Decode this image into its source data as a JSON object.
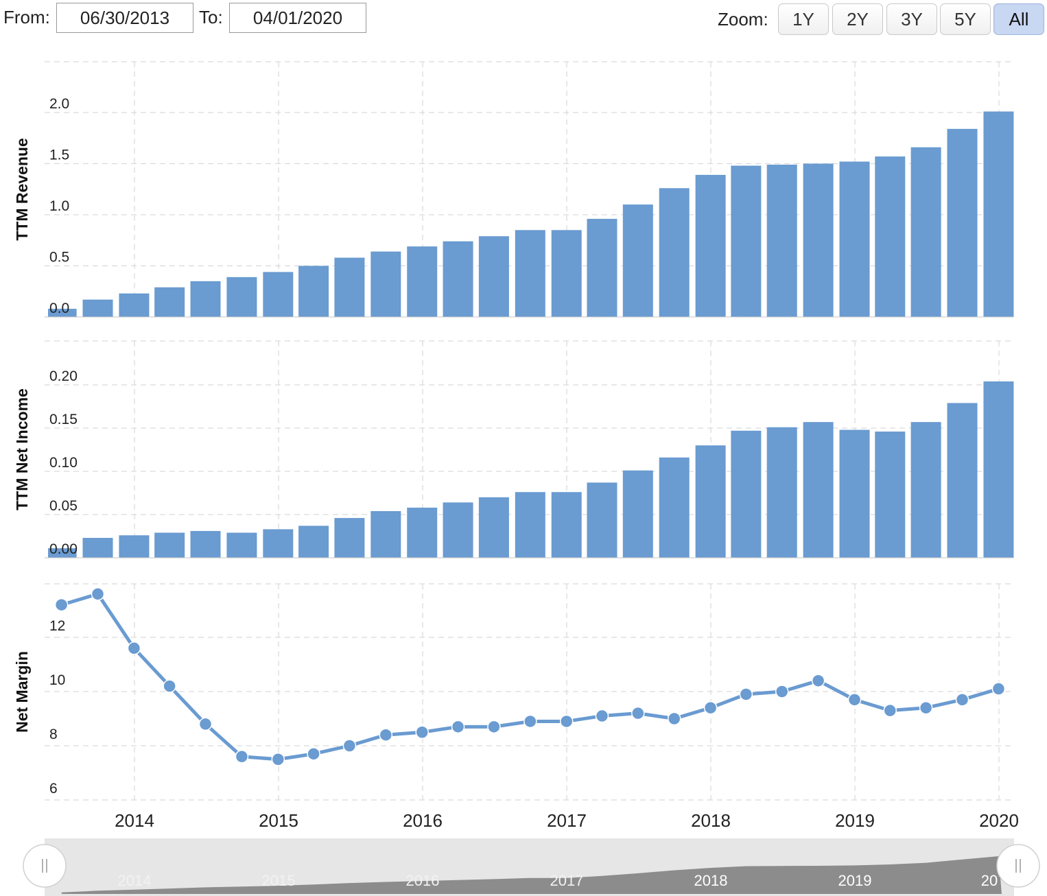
{
  "toolbar": {
    "from_label": "From:",
    "from_value": "06/30/2013",
    "to_label": "To:",
    "to_value": "04/01/2020",
    "zoom_label": "Zoom:",
    "zoom_options": [
      "1Y",
      "2Y",
      "3Y",
      "5Y",
      "All"
    ],
    "zoom_active": "All"
  },
  "colors": {
    "bar": "#6a9bd1",
    "line": "#6a9bd1",
    "grid": "#d9d9d9",
    "navigator_fill": "#8c8c8c",
    "navigator_bg": "#e6e6e6"
  },
  "chart_data": [
    {
      "type": "bar",
      "ylabel": "TTM Revenue",
      "ylim": [
        0,
        2.0
      ],
      "yticks": [
        "0.0",
        "0.5",
        "1.0",
        "1.5",
        "2.0"
      ],
      "x": [
        "2013-06-30",
        "2013-09-30",
        "2013-12-31",
        "2014-03-31",
        "2014-06-30",
        "2014-09-30",
        "2014-12-31",
        "2015-03-31",
        "2015-06-30",
        "2015-09-30",
        "2015-12-31",
        "2016-03-31",
        "2016-06-30",
        "2016-09-30",
        "2016-12-31",
        "2017-03-31",
        "2017-06-30",
        "2017-09-30",
        "2017-12-31",
        "2018-03-31",
        "2018-06-30",
        "2018-09-30",
        "2018-12-31",
        "2019-03-31",
        "2019-06-30",
        "2019-09-30",
        "2019-12-31"
      ],
      "values": [
        0.08,
        0.17,
        0.23,
        0.29,
        0.35,
        0.39,
        0.44,
        0.5,
        0.58,
        0.64,
        0.69,
        0.74,
        0.79,
        0.85,
        0.85,
        0.96,
        1.1,
        1.26,
        1.39,
        1.48,
        1.49,
        1.5,
        1.52,
        1.57,
        1.66,
        1.84,
        2.01
      ]
    },
    {
      "type": "bar",
      "ylabel": "TTM Net Income",
      "ylim": [
        0,
        0.2
      ],
      "yticks": [
        "0.00",
        "0.05",
        "0.10",
        "0.15",
        "0.20"
      ],
      "x": [
        "2013-06-30",
        "2013-09-30",
        "2013-12-31",
        "2014-03-31",
        "2014-06-30",
        "2014-09-30",
        "2014-12-31",
        "2015-03-31",
        "2015-06-30",
        "2015-09-30",
        "2015-12-31",
        "2016-03-31",
        "2016-06-30",
        "2016-09-30",
        "2016-12-31",
        "2017-03-31",
        "2017-06-30",
        "2017-09-30",
        "2017-12-31",
        "2018-03-31",
        "2018-06-30",
        "2018-09-30",
        "2018-12-31",
        "2019-03-31",
        "2019-06-30",
        "2019-09-30",
        "2019-12-31"
      ],
      "values": [
        0.011,
        0.023,
        0.026,
        0.029,
        0.031,
        0.029,
        0.033,
        0.037,
        0.046,
        0.054,
        0.058,
        0.064,
        0.07,
        0.076,
        0.076,
        0.087,
        0.101,
        0.116,
        0.13,
        0.147,
        0.151,
        0.157,
        0.148,
        0.146,
        0.157,
        0.179,
        0.204
      ]
    },
    {
      "type": "line",
      "ylabel": "Net Margin",
      "ylim": [
        6,
        14.5
      ],
      "yticks": [
        "6",
        "8",
        "10",
        "12"
      ],
      "x": [
        "2013-06-30",
        "2013-09-30",
        "2013-12-31",
        "2014-03-31",
        "2014-06-30",
        "2014-09-30",
        "2014-12-31",
        "2015-03-31",
        "2015-06-30",
        "2015-09-30",
        "2015-12-31",
        "2016-03-31",
        "2016-06-30",
        "2016-09-30",
        "2016-12-31",
        "2017-03-31",
        "2017-06-30",
        "2017-09-30",
        "2017-12-31",
        "2018-03-31",
        "2018-06-30",
        "2018-09-30",
        "2018-12-31",
        "2019-03-31",
        "2019-06-30",
        "2019-09-30",
        "2019-12-31"
      ],
      "values": [
        13.2,
        13.6,
        11.6,
        10.2,
        8.8,
        7.6,
        7.5,
        7.7,
        8.0,
        8.4,
        8.5,
        8.7,
        8.7,
        8.9,
        8.9,
        9.1,
        9.2,
        9.0,
        9.4,
        9.9,
        10.0,
        10.4,
        9.7,
        9.3,
        9.4,
        9.7,
        10.1
      ]
    }
  ],
  "xaxis": {
    "year_labels": [
      "2014",
      "2015",
      "2016",
      "2017",
      "2018",
      "2019",
      "2020"
    ]
  },
  "navigator": {
    "year_labels": [
      "2014",
      "2015",
      "2016",
      "2017",
      "2018",
      "2019",
      "20"
    ]
  }
}
